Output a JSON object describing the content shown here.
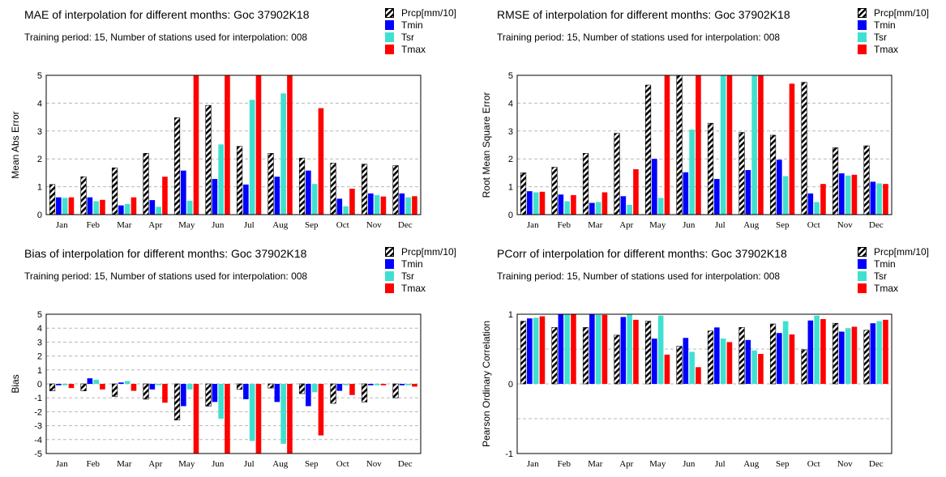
{
  "colors": {
    "tmin": "#0000ff",
    "tsr": "#40e0d0",
    "tmax": "#ff0000",
    "prcp": "hatched-black-white"
  },
  "chart_data": [
    {
      "type": "bar",
      "title": "MAE of interpolation for different months: Goc  37902K18",
      "subtitle": "Training period: 15, Number of stations used for interpolation: 008",
      "ylabel": "Mean Abs Error",
      "ylim": [
        0,
        5
      ],
      "yticks": [
        "0",
        "1",
        "2",
        "3",
        "4",
        "5"
      ],
      "grid": true,
      "legend": "top-right",
      "categories": [
        "Jan",
        "Feb",
        "Mar",
        "Apr",
        "May",
        "Jun",
        "Jul",
        "Aug",
        "Sep",
        "Oct",
        "Nov",
        "Dec"
      ],
      "series": [
        {
          "name": "Prcp[mm/10]",
          "values": [
            1.08,
            1.36,
            1.68,
            2.2,
            3.48,
            3.92,
            2.45,
            2.2,
            2.03,
            1.85,
            1.81,
            1.76
          ]
        },
        {
          "name": "Tmin",
          "values": [
            0.62,
            0.62,
            0.33,
            0.52,
            1.58,
            1.28,
            1.08,
            1.36,
            1.58,
            0.57,
            0.76,
            0.76
          ]
        },
        {
          "name": "Tsr",
          "values": [
            0.6,
            0.48,
            0.38,
            0.28,
            0.5,
            2.52,
            4.12,
            4.35,
            1.1,
            0.3,
            0.7,
            0.62
          ]
        },
        {
          "name": "Tmax",
          "values": [
            0.62,
            0.53,
            0.62,
            1.36,
            5,
            5,
            5,
            5,
            3.82,
            0.93,
            0.65,
            0.66
          ]
        }
      ]
    },
    {
      "type": "bar",
      "title": "RMSE of interpolation for different months: Goc  37902K18",
      "subtitle": "Training period: 15, Number of stations used for interpolation: 008",
      "ylabel": "Root Mean Square Error",
      "ylim": [
        0,
        5
      ],
      "yticks": [
        "0",
        "1",
        "2",
        "3",
        "4",
        "5"
      ],
      "grid": true,
      "legend": "top-right",
      "categories": [
        "Jan",
        "Feb",
        "Mar",
        "Apr",
        "May",
        "Jun",
        "Jul",
        "Aug",
        "Sep",
        "Oct",
        "Nov",
        "Dec"
      ],
      "series": [
        {
          "name": "Prcp[mm/10]",
          "values": [
            1.5,
            1.7,
            2.2,
            2.92,
            4.65,
            5,
            3.28,
            2.95,
            2.85,
            4.75,
            2.4,
            2.47
          ]
        },
        {
          "name": "Tmin",
          "values": [
            0.84,
            0.72,
            0.42,
            0.66,
            2.0,
            1.52,
            1.28,
            1.6,
            1.97,
            0.76,
            1.48,
            1.18
          ]
        },
        {
          "name": "Tsr",
          "values": [
            0.8,
            0.48,
            0.45,
            0.35,
            0.6,
            3.05,
            5,
            5,
            1.38,
            0.45,
            1.4,
            1.12
          ]
        },
        {
          "name": "Tmax",
          "values": [
            0.82,
            0.7,
            0.8,
            1.63,
            5,
            5,
            5,
            5,
            4.7,
            1.1,
            1.43,
            1.1
          ]
        }
      ]
    },
    {
      "type": "bar",
      "title": "Bias of interpolation for different months: Goc  37902K18",
      "subtitle": "Training period: 15, Number of stations used for interpolation: 008",
      "ylabel": "Bias",
      "ylim": [
        -5,
        5
      ],
      "yticks": [
        "-5",
        "-4",
        "-3",
        "-2",
        "-1",
        "0",
        "1",
        "2",
        "3",
        "4",
        "5"
      ],
      "grid": true,
      "legend": "top-right",
      "categories": [
        "Jan",
        "Feb",
        "Mar",
        "Apr",
        "May",
        "Jun",
        "Jul",
        "Aug",
        "Sep",
        "Oct",
        "Nov",
        "Dec"
      ],
      "series": [
        {
          "name": "Prcp[mm/10]",
          "values": [
            -0.5,
            -0.5,
            -0.9,
            -1.1,
            -2.6,
            -1.6,
            -0.4,
            -0.3,
            -0.7,
            -1.4,
            -1.3,
            -1.0
          ]
        },
        {
          "name": "Tmin",
          "values": [
            -0.1,
            0.4,
            0.1,
            -0.4,
            -1.6,
            -1.3,
            -1.1,
            -1.3,
            -1.6,
            -0.5,
            -0.1,
            -0.1
          ]
        },
        {
          "name": "Tsr",
          "values": [
            -0.1,
            0.3,
            0.2,
            -0.1,
            -0.4,
            -2.5,
            -4.1,
            -4.3,
            -0.6,
            -0.1,
            -0.1,
            -0.1
          ]
        },
        {
          "name": "Tmax",
          "values": [
            -0.3,
            -0.4,
            -0.5,
            -1.35,
            -5,
            -5,
            -5,
            -5,
            -3.7,
            -0.8,
            -0.1,
            -0.2
          ]
        }
      ]
    },
    {
      "type": "bar",
      "title": "PCorr of interpolation for different months: Goc  37902K18",
      "subtitle": "Training period: 15, Number of stations used for interpolation: 008",
      "ylabel": "Pearson Ordinary Correlation",
      "ylim": [
        -1,
        1
      ],
      "yticks": [
        "-1",
        "",
        "0",
        "",
        "1"
      ],
      "grid": true,
      "legend": "top-right",
      "categories": [
        "Jan",
        "Feb",
        "Mar",
        "Apr",
        "May",
        "Jun",
        "Jul",
        "Aug",
        "Sep",
        "Oct",
        "Nov",
        "Dec"
      ],
      "series": [
        {
          "name": "Prcp[mm/10]",
          "values": [
            0.9,
            0.81,
            0.81,
            0.7,
            0.9,
            0.54,
            0.76,
            0.81,
            0.86,
            0.49,
            0.87,
            0.77
          ]
        },
        {
          "name": "Tmin",
          "values": [
            0.94,
            1.0,
            1.0,
            0.96,
            0.65,
            0.66,
            0.81,
            0.63,
            0.73,
            0.91,
            0.75,
            0.87
          ]
        },
        {
          "name": "Tsr",
          "values": [
            0.95,
            1.0,
            0.99,
            1.0,
            0.98,
            0.46,
            0.65,
            0.48,
            0.9,
            0.98,
            0.8,
            0.9
          ]
        },
        {
          "name": "Tmax",
          "values": [
            0.97,
            1.0,
            0.99,
            0.92,
            0.42,
            0.24,
            0.6,
            0.43,
            0.71,
            0.93,
            0.82,
            0.92
          ]
        }
      ]
    }
  ]
}
